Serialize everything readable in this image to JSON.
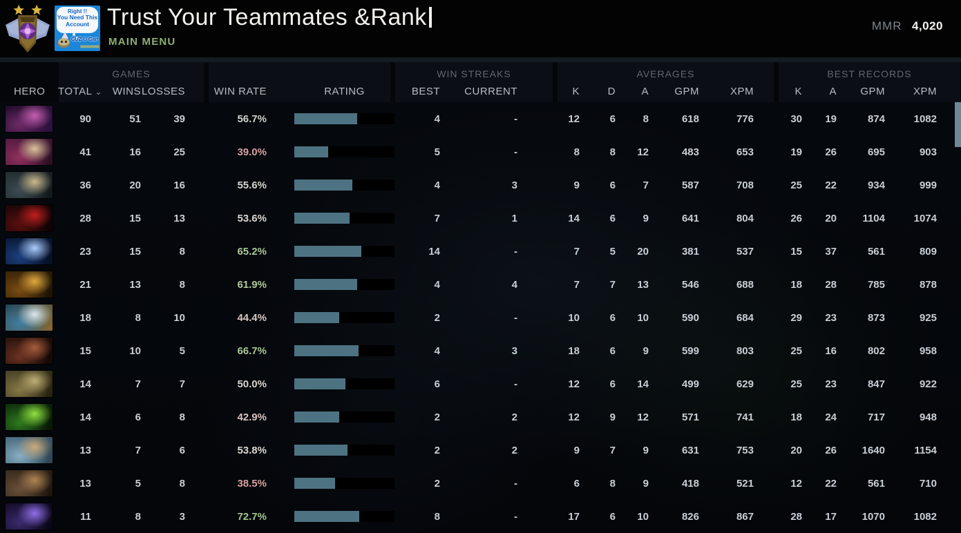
{
  "topbar": {
    "player_name": "Trust Your Teammates &Rank",
    "main_menu_label": "MAIN MENU",
    "mmr_label": "MMR",
    "mmr_value": "4,020",
    "rank_medal": "ancient-medal-2-stars",
    "avatar": {
      "cloud_lines": [
        "Right !!",
        "You Need This",
        "Account"
      ],
      "caption": "CUZ U Can",
      "chevrons": "»»»»»»"
    }
  },
  "table": {
    "groups": [
      {
        "label": "GAMES"
      },
      {
        "label": "WIN STREAKS"
      },
      {
        "label": "AVERAGES"
      },
      {
        "label": "BEST RECORDS"
      }
    ],
    "columns": {
      "hero": "HERO",
      "total": "TOTAL",
      "wins": "WINS",
      "losses": "LOSSES",
      "win_rate": "WIN RATE",
      "rating": "RATING",
      "best": "BEST",
      "current": "CURRENT",
      "k": "K",
      "d": "D",
      "a": "A",
      "gpm": "GPM",
      "xpm": "XPM",
      "rk": "K",
      "ra": "A",
      "rgpm": "GPM",
      "rxpm": "XPM"
    },
    "sort_indicator": "⌄",
    "rows": [
      {
        "hero": "templar-assassin",
        "portrait_colors": [
          "#1c0b26",
          "#6e2a66",
          "#c45fb0",
          "#2e1140"
        ],
        "total": "90",
        "wins": "51",
        "losses": "39",
        "win_rate": "56.7%",
        "win_rate_color": "#cfd3cc",
        "rating_pct": 63,
        "best": "4",
        "current": "-",
        "k": "12",
        "d": "6",
        "a": "8",
        "gpm": "618",
        "xpm": "776",
        "rk": "30",
        "ra": "19",
        "rgpm": "874",
        "rxpm": "1082"
      },
      {
        "hero": "invoker",
        "portrait_colors": [
          "#571c44",
          "#93305f",
          "#d9c49a",
          "#2a0f22"
        ],
        "total": "41",
        "wins": "16",
        "losses": "25",
        "win_rate": "39.0%",
        "win_rate_color": "#d7a0a0",
        "rating_pct": 34,
        "best": "5",
        "current": "-",
        "k": "8",
        "d": "8",
        "a": "12",
        "gpm": "483",
        "xpm": "653",
        "rk": "19",
        "ra": "26",
        "rgpm": "695",
        "rxpm": "903"
      },
      {
        "hero": "phantom-lancer",
        "portrait_colors": [
          "#232e33",
          "#3d4c52",
          "#cdb98e",
          "#11181c"
        ],
        "total": "36",
        "wins": "20",
        "losses": "16",
        "win_rate": "55.6%",
        "win_rate_color": "#d3d6cf",
        "rating_pct": 58,
        "best": "4",
        "current": "3",
        "k": "9",
        "d": "6",
        "a": "7",
        "gpm": "587",
        "xpm": "708",
        "rk": "25",
        "ra": "22",
        "rgpm": "934",
        "rxpm": "999"
      },
      {
        "hero": "shadow-fiend",
        "portrait_colors": [
          "#1c0606",
          "#5a0f0f",
          "#c01f1f",
          "#0e0303"
        ],
        "total": "28",
        "wins": "15",
        "losses": "13",
        "win_rate": "53.6%",
        "win_rate_color": "#d9d6d2",
        "rating_pct": 55,
        "best": "7",
        "current": "1",
        "k": "14",
        "d": "6",
        "a": "9",
        "gpm": "641",
        "xpm": "804",
        "rk": "26",
        "ra": "20",
        "rgpm": "1104",
        "rxpm": "1074"
      },
      {
        "hero": "io",
        "portrait_colors": [
          "#0a1838",
          "#1d3f7d",
          "#aacdfc",
          "#061026"
        ],
        "total": "23",
        "wins": "15",
        "losses": "8",
        "win_rate": "65.2%",
        "win_rate_color": "#abc79a",
        "rating_pct": 67,
        "best": "14",
        "current": "-",
        "k": "7",
        "d": "5",
        "a": "20",
        "gpm": "381",
        "xpm": "537",
        "rk": "15",
        "ra": "37",
        "rgpm": "561",
        "rxpm": "809"
      },
      {
        "hero": "monkey-king",
        "portrait_colors": [
          "#3a2508",
          "#7a4c12",
          "#e0a93e",
          "#1c1204"
        ],
        "total": "21",
        "wins": "13",
        "losses": "8",
        "win_rate": "61.9%",
        "win_rate_color": "#b0c99e",
        "rating_pct": 63,
        "best": "4",
        "current": "4",
        "k": "7",
        "d": "7",
        "a": "13",
        "gpm": "546",
        "xpm": "688",
        "rk": "18",
        "ra": "28",
        "rgpm": "785",
        "rxpm": "878"
      },
      {
        "hero": "storm-spirit",
        "portrait_colors": [
          "#1f4258",
          "#3f7da3",
          "#dce8ec",
          "#8a6a2e"
        ],
        "total": "18",
        "wins": "8",
        "losses": "10",
        "win_rate": "44.4%",
        "win_rate_color": "#d9c6c2",
        "rating_pct": 45,
        "best": "2",
        "current": "-",
        "k": "10",
        "d": "6",
        "a": "10",
        "gpm": "590",
        "xpm": "684",
        "rk": "29",
        "ra": "23",
        "rgpm": "873",
        "rxpm": "925"
      },
      {
        "hero": "ursa",
        "portrait_colors": [
          "#2a120c",
          "#6b3322",
          "#a65c3a",
          "#140806"
        ],
        "total": "15",
        "wins": "10",
        "losses": "5",
        "win_rate": "66.7%",
        "win_rate_color": "#a9c797",
        "rating_pct": 64,
        "best": "4",
        "current": "3",
        "k": "18",
        "d": "6",
        "a": "9",
        "gpm": "599",
        "xpm": "803",
        "rk": "25",
        "ra": "16",
        "rgpm": "802",
        "rxpm": "958"
      },
      {
        "hero": "pudge",
        "portrait_colors": [
          "#4a4326",
          "#877a48",
          "#bfae74",
          "#27220f"
        ],
        "total": "14",
        "wins": "7",
        "losses": "7",
        "win_rate": "50.0%",
        "win_rate_color": "#d8d4cf",
        "rating_pct": 51,
        "best": "6",
        "current": "-",
        "k": "12",
        "d": "6",
        "a": "14",
        "gpm": "499",
        "xpm": "629",
        "rk": "25",
        "ra": "23",
        "rgpm": "847",
        "rxpm": "922"
      },
      {
        "hero": "necrophos",
        "portrait_colors": [
          "#0f2e0d",
          "#2f7a1e",
          "#8fe23f",
          "#071804"
        ],
        "total": "14",
        "wins": "6",
        "losses": "8",
        "win_rate": "42.9%",
        "win_rate_color": "#d9c4c0",
        "rating_pct": 45,
        "best": "2",
        "current": "2",
        "k": "12",
        "d": "9",
        "a": "12",
        "gpm": "571",
        "xpm": "741",
        "rk": "18",
        "ra": "24",
        "rgpm": "717",
        "rxpm": "948"
      },
      {
        "hero": "meepo",
        "portrait_colors": [
          "#4a6a7e",
          "#88b0c4",
          "#c9a87a",
          "#2d4452"
        ],
        "total": "13",
        "wins": "7",
        "losses": "6",
        "win_rate": "53.8%",
        "win_rate_color": "#dbd7d3",
        "rating_pct": 53,
        "best": "2",
        "current": "2",
        "k": "9",
        "d": "7",
        "a": "9",
        "gpm": "631",
        "xpm": "753",
        "rk": "20",
        "ra": "26",
        "rgpm": "1640",
        "rxpm": "1154"
      },
      {
        "hero": "techies",
        "portrait_colors": [
          "#3a2c1e",
          "#6b5138",
          "#b08455",
          "#1c140c"
        ],
        "total": "13",
        "wins": "5",
        "losses": "8",
        "win_rate": "38.5%",
        "win_rate_color": "#d7a0a0",
        "rating_pct": 41,
        "best": "2",
        "current": "-",
        "k": "6",
        "d": "8",
        "a": "9",
        "gpm": "418",
        "xpm": "521",
        "rk": "12",
        "ra": "22",
        "rgpm": "561",
        "rxpm": "710"
      },
      {
        "hero": "enigma",
        "portrait_colors": [
          "#150d2b",
          "#3c2a6e",
          "#8f6fe8",
          "#0a0618"
        ],
        "total": "11",
        "wins": "8",
        "losses": "3",
        "win_rate": "72.7%",
        "win_rate_color": "#a3c790",
        "rating_pct": 65,
        "best": "8",
        "current": "-",
        "k": "17",
        "d": "6",
        "a": "10",
        "gpm": "826",
        "xpm": "867",
        "rk": "28",
        "ra": "17",
        "rgpm": "1070",
        "rxpm": "1082"
      }
    ]
  },
  "colors": {
    "bar_fill": "#4d7383",
    "bar_empty": "#000000",
    "number_text": "#c9cfd6",
    "accent_green": "#a6c795",
    "accent_red": "#d49c9c",
    "main_menu_green": "#8fae71",
    "scroll_thumb": "#6d8794"
  }
}
